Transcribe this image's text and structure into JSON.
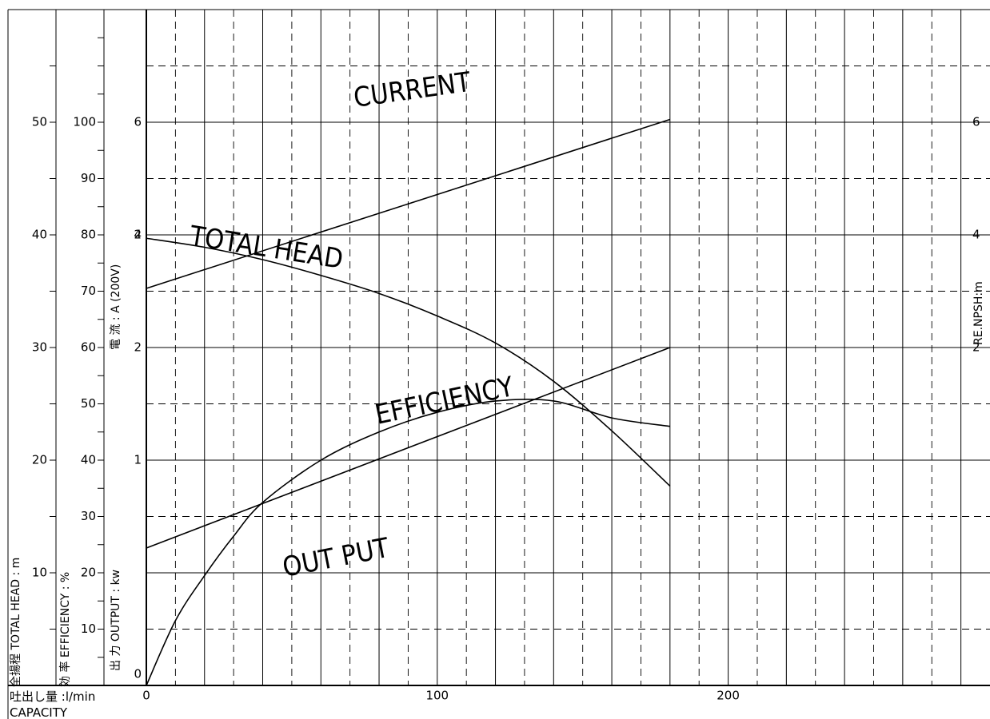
{
  "chart_data": {
    "type": "line",
    "x": {
      "label_ja": "吐出し量 :l/min",
      "label_en": "CAPACITY",
      "range": [
        0,
        290
      ],
      "ticks": [
        0,
        100,
        200
      ]
    },
    "axes": {
      "head": {
        "label": "全揚程 TOTAL HEAD : m",
        "range": [
          0,
          60
        ],
        "ticks": [
          10,
          20,
          30,
          40,
          50
        ]
      },
      "efficiency": {
        "label": "効 率 EFFICIENCY : %",
        "range": [
          0,
          120
        ],
        "ticks": [
          10,
          20,
          30,
          40,
          50,
          60,
          70,
          80,
          90,
          100
        ]
      },
      "output": {
        "label": "出 力 OUTPUT : kw",
        "range": [
          0,
          3
        ],
        "ticks": [
          0,
          1,
          2
        ]
      },
      "current": {
        "label": "電 流 : A (200V)",
        "range": [
          -4,
          8
        ],
        "ticks": [
          2,
          4,
          6
        ]
      },
      "npsh": {
        "label": "RE.NPSH:m",
        "range": [
          -4,
          8
        ],
        "ticks": [
          2,
          4,
          6
        ]
      }
    },
    "series": [
      {
        "name": "CURRENT",
        "axis": "current",
        "x": [
          0,
          180
        ],
        "y": [
          3.05,
          6.05
        ]
      },
      {
        "name": "TOTAL HEAD",
        "axis": "head",
        "x": [
          0,
          20,
          40,
          60,
          80,
          100,
          120,
          140,
          160,
          180
        ],
        "y": [
          39.7,
          38.9,
          37.8,
          36.4,
          34.8,
          32.8,
          30.4,
          27.0,
          22.6,
          17.7
        ]
      },
      {
        "name": "EFFICIENCY",
        "axis": "efficiency",
        "x": [
          0,
          10,
          20,
          30,
          40,
          60,
          80,
          100,
          120,
          140,
          160,
          180
        ],
        "y": [
          0,
          11.5,
          19.5,
          26.5,
          32.5,
          40,
          45,
          48.5,
          50.5,
          50.5,
          47.5,
          46
        ]
      },
      {
        "name": "OUT PUT",
        "axis": "output",
        "x": [
          0,
          180
        ],
        "y": [
          0.61,
          1.5
        ]
      }
    ]
  }
}
